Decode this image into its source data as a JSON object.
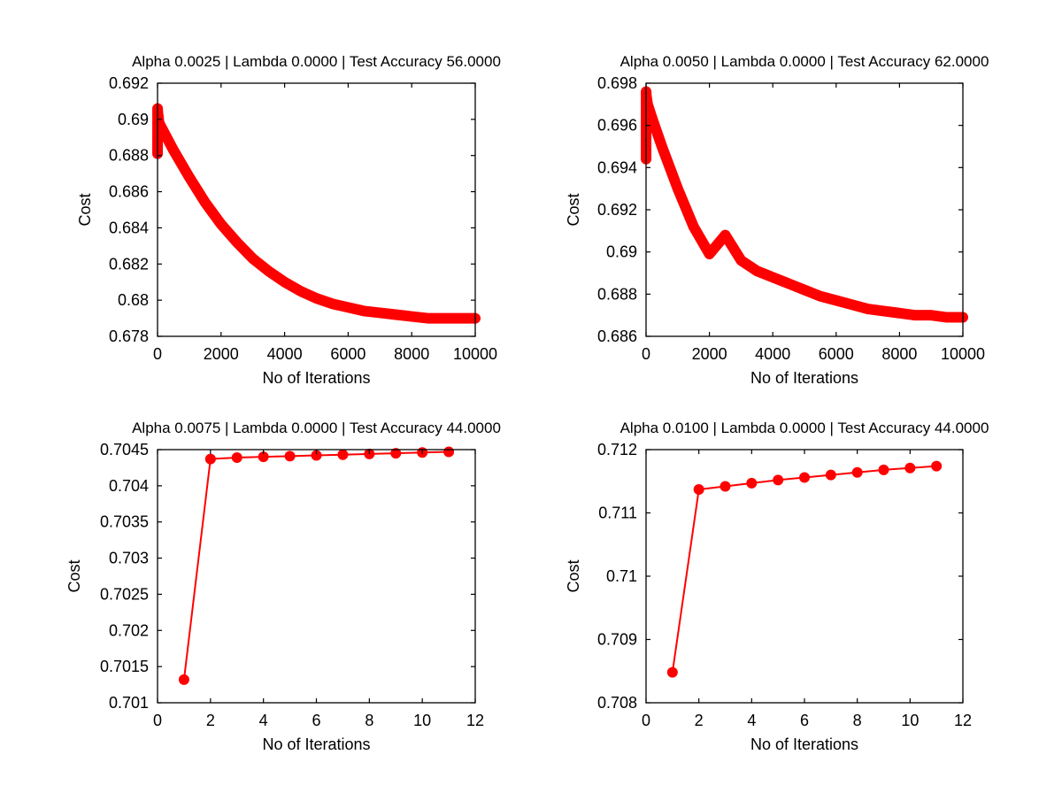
{
  "chart_data": [
    {
      "type": "line",
      "title": "Alpha 0.0025 | Lambda 0.0000 | Test Accuracy 56.0000",
      "xlabel": "No of Iterations",
      "ylabel": "Cost",
      "xlim": [
        0,
        10000
      ],
      "ylim": [
        0.678,
        0.692
      ],
      "xticks": [
        0,
        2000,
        4000,
        6000,
        8000,
        10000
      ],
      "xtick_labels": [
        "0",
        "2000",
        "4000",
        "6000",
        "8000",
        "10000"
      ],
      "yticks": [
        0.678,
        0.68,
        0.682,
        0.684,
        0.686,
        0.688,
        0.69,
        0.692
      ],
      "ytick_labels": [
        "0.678",
        "0.68",
        "0.682",
        "0.684",
        "0.686",
        "0.688",
        "0.69",
        "0.692"
      ],
      "grid": false,
      "marker": "circle",
      "color": "#ff0000",
      "dense_markers": true,
      "series": [
        {
          "x": [
            1,
            2,
            10,
            50,
            200,
            500,
            1000,
            1500,
            2000,
            2500,
            3000,
            3500,
            4000,
            4500,
            5000,
            5500,
            6000,
            6500,
            7000,
            7500,
            8000,
            8500,
            9000,
            9500,
            10000
          ],
          "values": [
            0.6881,
            0.6906,
            0.6904,
            0.6898,
            0.6893,
            0.6883,
            0.6868,
            0.6854,
            0.6842,
            0.6832,
            0.6823,
            0.6816,
            0.681,
            0.6805,
            0.6801,
            0.6798,
            0.6796,
            0.6794,
            0.6793,
            0.6792,
            0.6791,
            0.679,
            0.679,
            0.679,
            0.679
          ]
        }
      ]
    },
    {
      "type": "line",
      "title": "Alpha 0.0050 | Lambda 0.0000 | Test Accuracy 62.0000",
      "xlabel": "No of Iterations",
      "ylabel": "Cost",
      "xlim": [
        0,
        10000
      ],
      "ylim": [
        0.686,
        0.698
      ],
      "xticks": [
        0,
        2000,
        4000,
        6000,
        8000,
        10000
      ],
      "xtick_labels": [
        "0",
        "2000",
        "4000",
        "6000",
        "8000",
        "10000"
      ],
      "yticks": [
        0.686,
        0.688,
        0.69,
        0.692,
        0.694,
        0.696,
        0.698
      ],
      "ytick_labels": [
        "0.686",
        "0.688",
        "0.69",
        "0.692",
        "0.694",
        "0.696",
        "0.698"
      ],
      "grid": false,
      "marker": "circle",
      "color": "#ff0000",
      "dense_markers": true,
      "series": [
        {
          "x": [
            1,
            2,
            10,
            50,
            200,
            500,
            1000,
            1500,
            2000,
            2500,
            3000,
            3500,
            4000,
            4500,
            5000,
            5500,
            6000,
            6500,
            7000,
            7500,
            8000,
            8500,
            9000,
            9500,
            10000
          ],
          "values": [
            0.6944,
            0.6976,
            0.6974,
            0.697,
            0.6963,
            0.695,
            0.693,
            0.6912,
            0.6899,
            0.6908,
            0.6896,
            0.6891,
            0.6888,
            0.6885,
            0.6882,
            0.6879,
            0.6877,
            0.6875,
            0.6873,
            0.6872,
            0.6871,
            0.687,
            0.687,
            0.6869,
            0.6869
          ]
        }
      ]
    },
    {
      "type": "line",
      "title": "Alpha 0.0075 | Lambda 0.0000 | Test Accuracy 44.0000",
      "xlabel": "No of Iterations",
      "ylabel": "Cost",
      "xlim": [
        0,
        12
      ],
      "ylim": [
        0.701,
        0.7045
      ],
      "xticks": [
        0,
        2,
        4,
        6,
        8,
        10,
        12
      ],
      "xtick_labels": [
        "0",
        "2",
        "4",
        "6",
        "8",
        "10",
        "12"
      ],
      "yticks": [
        0.701,
        0.7015,
        0.702,
        0.7025,
        0.703,
        0.7035,
        0.704,
        0.7045
      ],
      "ytick_labels": [
        "0.701",
        "0.7015",
        "0.702",
        "0.7025",
        "0.703",
        "0.7035",
        "0.704",
        "0.7045"
      ],
      "grid": false,
      "marker": "circle",
      "color": "#ff0000",
      "dense_markers": false,
      "series": [
        {
          "x": [
            1,
            2,
            3,
            4,
            5,
            6,
            7,
            8,
            9,
            10,
            11
          ],
          "values": [
            0.70132,
            0.70437,
            0.70439,
            0.7044,
            0.70441,
            0.70442,
            0.70443,
            0.70444,
            0.70445,
            0.70446,
            0.70447
          ]
        }
      ]
    },
    {
      "type": "line",
      "title": "Alpha 0.0100 | Lambda 0.0000 | Test Accuracy 44.0000",
      "xlabel": "No of Iterations",
      "ylabel": "Cost",
      "xlim": [
        0,
        12
      ],
      "ylim": [
        0.708,
        0.712
      ],
      "xticks": [
        0,
        2,
        4,
        6,
        8,
        10,
        12
      ],
      "xtick_labels": [
        "0",
        "2",
        "4",
        "6",
        "8",
        "10",
        "12"
      ],
      "yticks": [
        0.708,
        0.709,
        0.71,
        0.711,
        0.712
      ],
      "ytick_labels": [
        "0.708",
        "0.709",
        "0.71",
        "0.711",
        "0.712"
      ],
      "grid": false,
      "marker": "circle",
      "color": "#ff0000",
      "dense_markers": false,
      "series": [
        {
          "x": [
            1,
            2,
            3,
            4,
            5,
            6,
            7,
            8,
            9,
            10,
            11
          ],
          "values": [
            0.70848,
            0.71137,
            0.71142,
            0.71147,
            0.71152,
            0.71156,
            0.7116,
            0.71164,
            0.71168,
            0.71171,
            0.71174
          ]
        }
      ]
    }
  ]
}
